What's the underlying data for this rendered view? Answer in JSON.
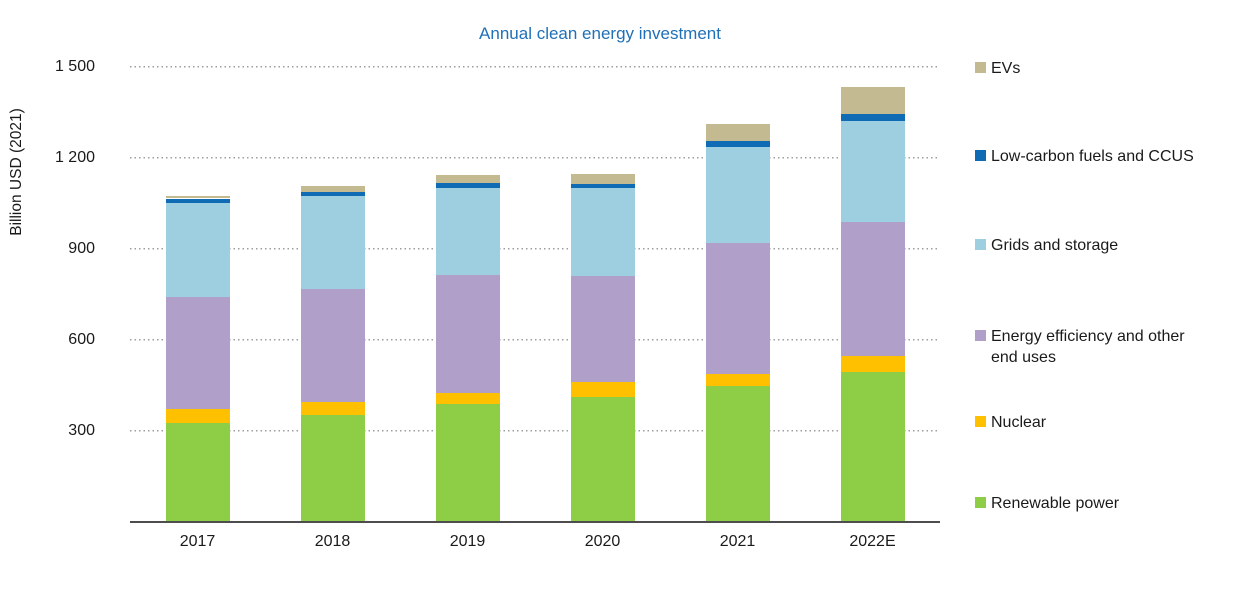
{
  "title": "Annual clean energy investment",
  "title_color": "#1f70b8",
  "axis": {
    "y_label": "Billion USD (2021)",
    "ytick_labels": [
      "300",
      "600",
      "900",
      "1 200",
      "1 500"
    ],
    "x_labels": [
      "2017",
      "2018",
      "2019",
      "2020",
      "2021",
      "2022E"
    ]
  },
  "legend_items": [
    {
      "label": "EVs",
      "color": "#c3ba92"
    },
    {
      "label": "Low-carbon fuels and CCUS",
      "color": "#0f6cb4"
    },
    {
      "label": "Grids and storage",
      "color": "#9dcfe1"
    },
    {
      "label": "Energy efficiency and other end uses",
      "color": "#af9fc9"
    },
    {
      "label": "Nuclear",
      "color": "#ffc000"
    },
    {
      "label": "Renewable power",
      "color": "#8dce46"
    }
  ],
  "chart_data": {
    "type": "bar",
    "stacked": true,
    "title": "Annual clean energy investment",
    "xlabel": "",
    "ylabel": "Billion USD (2021)",
    "categories": [
      "2017",
      "2018",
      "2019",
      "2020",
      "2021",
      "2022E"
    ],
    "series": [
      {
        "name": "Renewable power",
        "color": "#8dce46",
        "values": [
          325,
          352,
          387,
          412,
          446,
          494
        ]
      },
      {
        "name": "Nuclear",
        "color": "#ffc000",
        "values": [
          45,
          41,
          38,
          50,
          42,
          52
        ]
      },
      {
        "name": "Energy efficiency and other end uses",
        "color": "#af9fc9",
        "values": [
          370,
          375,
          389,
          347,
          430,
          443
        ]
      },
      {
        "name": "Grids and storage",
        "color": "#9dcfe1",
        "values": [
          311,
          305,
          288,
          293,
          319,
          333
        ]
      },
      {
        "name": "Low-carbon fuels and CCUS",
        "color": "#0f6cb4",
        "values": [
          15,
          14,
          15,
          12,
          19,
          22
        ]
      },
      {
        "name": "EVs",
        "color": "#c3ba92",
        "values": [
          8,
          21,
          28,
          32,
          57,
          89
        ]
      }
    ],
    "totals": [
      1074,
      1108,
      1145,
      1146,
      1313,
      1433
    ],
    "ylim": [
      0,
      1500
    ],
    "yticks": [
      300,
      600,
      900,
      1200,
      1500
    ],
    "grid": "horizontal-dotted",
    "legend_position": "right",
    "legend_order_top_to_bottom": [
      "EVs",
      "Low-carbon fuels and CCUS",
      "Grids and storage",
      "Energy efficiency and other end uses",
      "Nuclear",
      "Renewable power"
    ]
  }
}
